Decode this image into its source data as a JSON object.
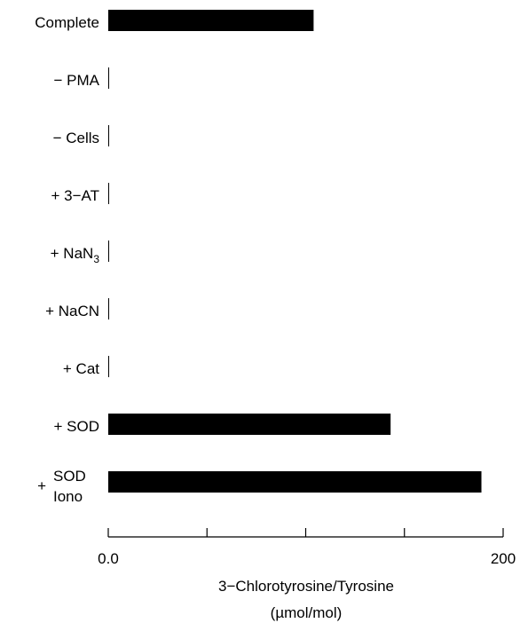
{
  "chart_data": {
    "type": "bar",
    "orientation": "horizontal",
    "categories": [
      "Complete",
      "− PMA",
      "− Cells",
      "+ 3−AT",
      "+ NaN3",
      "+ NaCN",
      "+ Cat",
      "+ SOD",
      "+ SOD Iono"
    ],
    "values": [
      104,
      0.4,
      0.4,
      0.4,
      0.4,
      0.4,
      0.4,
      143,
      189
    ],
    "xlabel": "3−Chlorotyrosine/Tyrosine",
    "xunit": "(µmol/mol)",
    "xlim": [
      0,
      200
    ],
    "x_tick_labels": [
      "0.0",
      "200"
    ],
    "x_ticks": [
      0,
      50,
      100,
      150,
      200
    ],
    "bar_color": "#000000",
    "grid": false
  }
}
